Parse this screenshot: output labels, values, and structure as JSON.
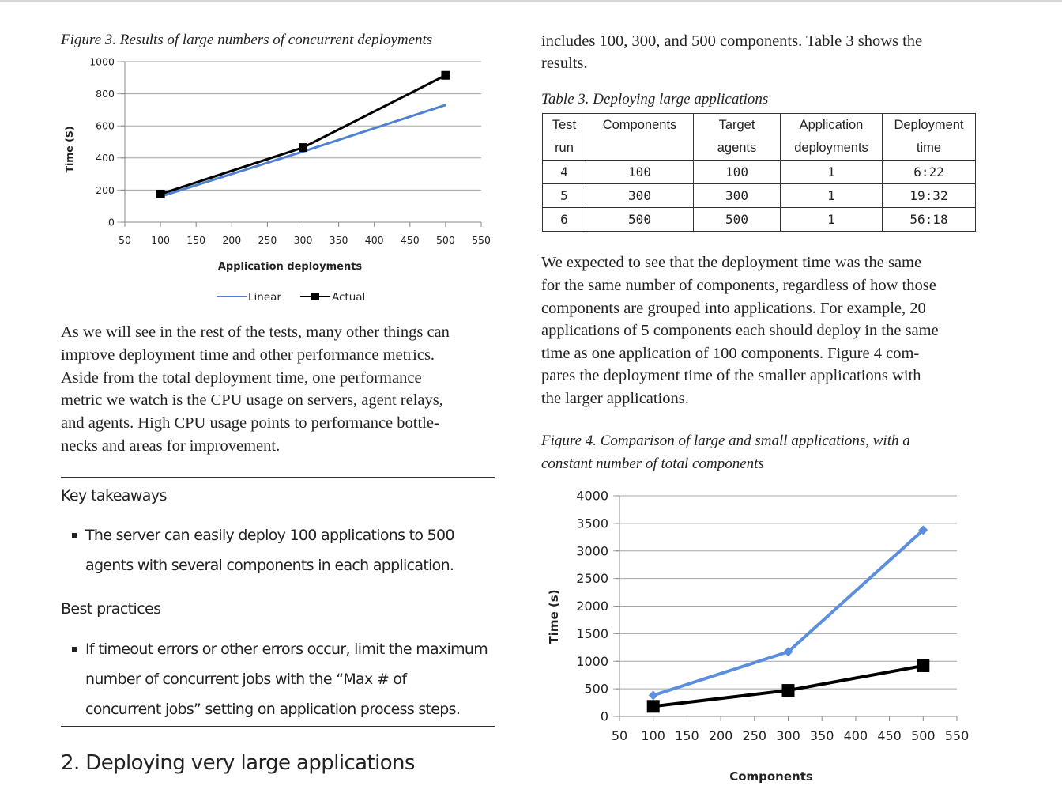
{
  "left": {
    "figure3_caption": "Figure 3. Results of large numbers of concurrent deployments",
    "paragraph": [
      "As we will see in the rest of the tests, many other things can",
      "improve deployment time and other performance metrics.",
      "Aside from the total deployment time, one performance",
      "metric we watch is the CPU usage on servers, agent relays,",
      "and agents. High CPU usage points to performance bottle-",
      "necks and areas for improvement."
    ],
    "key_takeaways": {
      "heading": "Key takeaways",
      "bullet_lines": [
        "The server can easily deploy 100 applications to 500",
        "agents with several components in each application."
      ]
    },
    "best_practices": {
      "heading": "Best practices",
      "bullet_lines": [
        "If timeout errors or other errors occur, limit the maximum",
        "number of concurrent jobs with the “Max # of",
        "concurrent jobs” setting on application process steps."
      ]
    },
    "section_title": "2. Deploying very large applications"
  },
  "right": {
    "intro": [
      "includes 100, 300, and 500 components. Table 3 shows the",
      "results."
    ],
    "table3_caption": "Table 3. Deploying large applications",
    "table3": {
      "header_line1": [
        "Test",
        "Components",
        "Target",
        "Application",
        "Deployment"
      ],
      "header_line2": [
        "run",
        "",
        "agents",
        "deployments",
        "time"
      ],
      "rows": [
        [
          "4",
          "100",
          "100",
          "1",
          "6:22"
        ],
        [
          "5",
          "300",
          "300",
          "1",
          "19:32"
        ],
        [
          "6",
          "500",
          "500",
          "1",
          "56:18"
        ]
      ]
    },
    "paragraph": [
      "We expected to see that the deployment time was the same",
      "for the same number of components, regardless of how those",
      "components are grouped into applications. For example, 20",
      "applications of 5 components each should deploy in the same",
      "time as one application of 100 components. Figure 4 com-",
      "pares the deployment time of the smaller applications with",
      "the larger applications."
    ],
    "figure4_caption": [
      "Figure 4. Comparison of large and small applications, with a",
      "constant number of total components"
    ]
  },
  "chart_data": [
    {
      "type": "line",
      "xlabel": "Application deployments",
      "ylabel": "Time (S)",
      "xlim": [
        50,
        550
      ],
      "ylim": [
        0,
        1000
      ],
      "x_ticks": [
        "50",
        "100",
        "150",
        "200",
        "250",
        "300",
        "350",
        "400",
        "450",
        "500",
        "550"
      ],
      "y_ticks": [
        "0",
        "200",
        "400",
        "600",
        "800",
        "1000"
      ],
      "grid": true,
      "legend_position": "bottom",
      "series": [
        {
          "name": "Linear",
          "color": "#4f81d1",
          "marker": "none",
          "x": [
            100,
            300,
            500
          ],
          "values": [
            160,
            440,
            730
          ]
        },
        {
          "name": "Actual",
          "color": "#000000",
          "marker": "square",
          "x": [
            100,
            300,
            500
          ],
          "values": [
            175,
            465,
            915
          ]
        }
      ]
    },
    {
      "type": "line",
      "xlabel": "Components",
      "ylabel": "Time (s)",
      "xlim": [
        50,
        550
      ],
      "ylim": [
        0,
        4000
      ],
      "x_ticks": [
        "50",
        "100",
        "150",
        "200",
        "250",
        "300",
        "350",
        "400",
        "450",
        "500",
        "550"
      ],
      "y_ticks": [
        "0",
        "500",
        "1000",
        "1500",
        "2000",
        "2500",
        "3000",
        "3500",
        "4000"
      ],
      "grid": true,
      "series": [
        {
          "color": "#5b8fde",
          "marker": "diamond",
          "x": [
            100,
            300,
            500
          ],
          "values": [
            382,
            1172,
            3378
          ]
        },
        {
          "color": "#000000",
          "marker": "square",
          "x": [
            100,
            300,
            500
          ],
          "values": [
            182,
            472,
            918
          ]
        }
      ]
    }
  ]
}
